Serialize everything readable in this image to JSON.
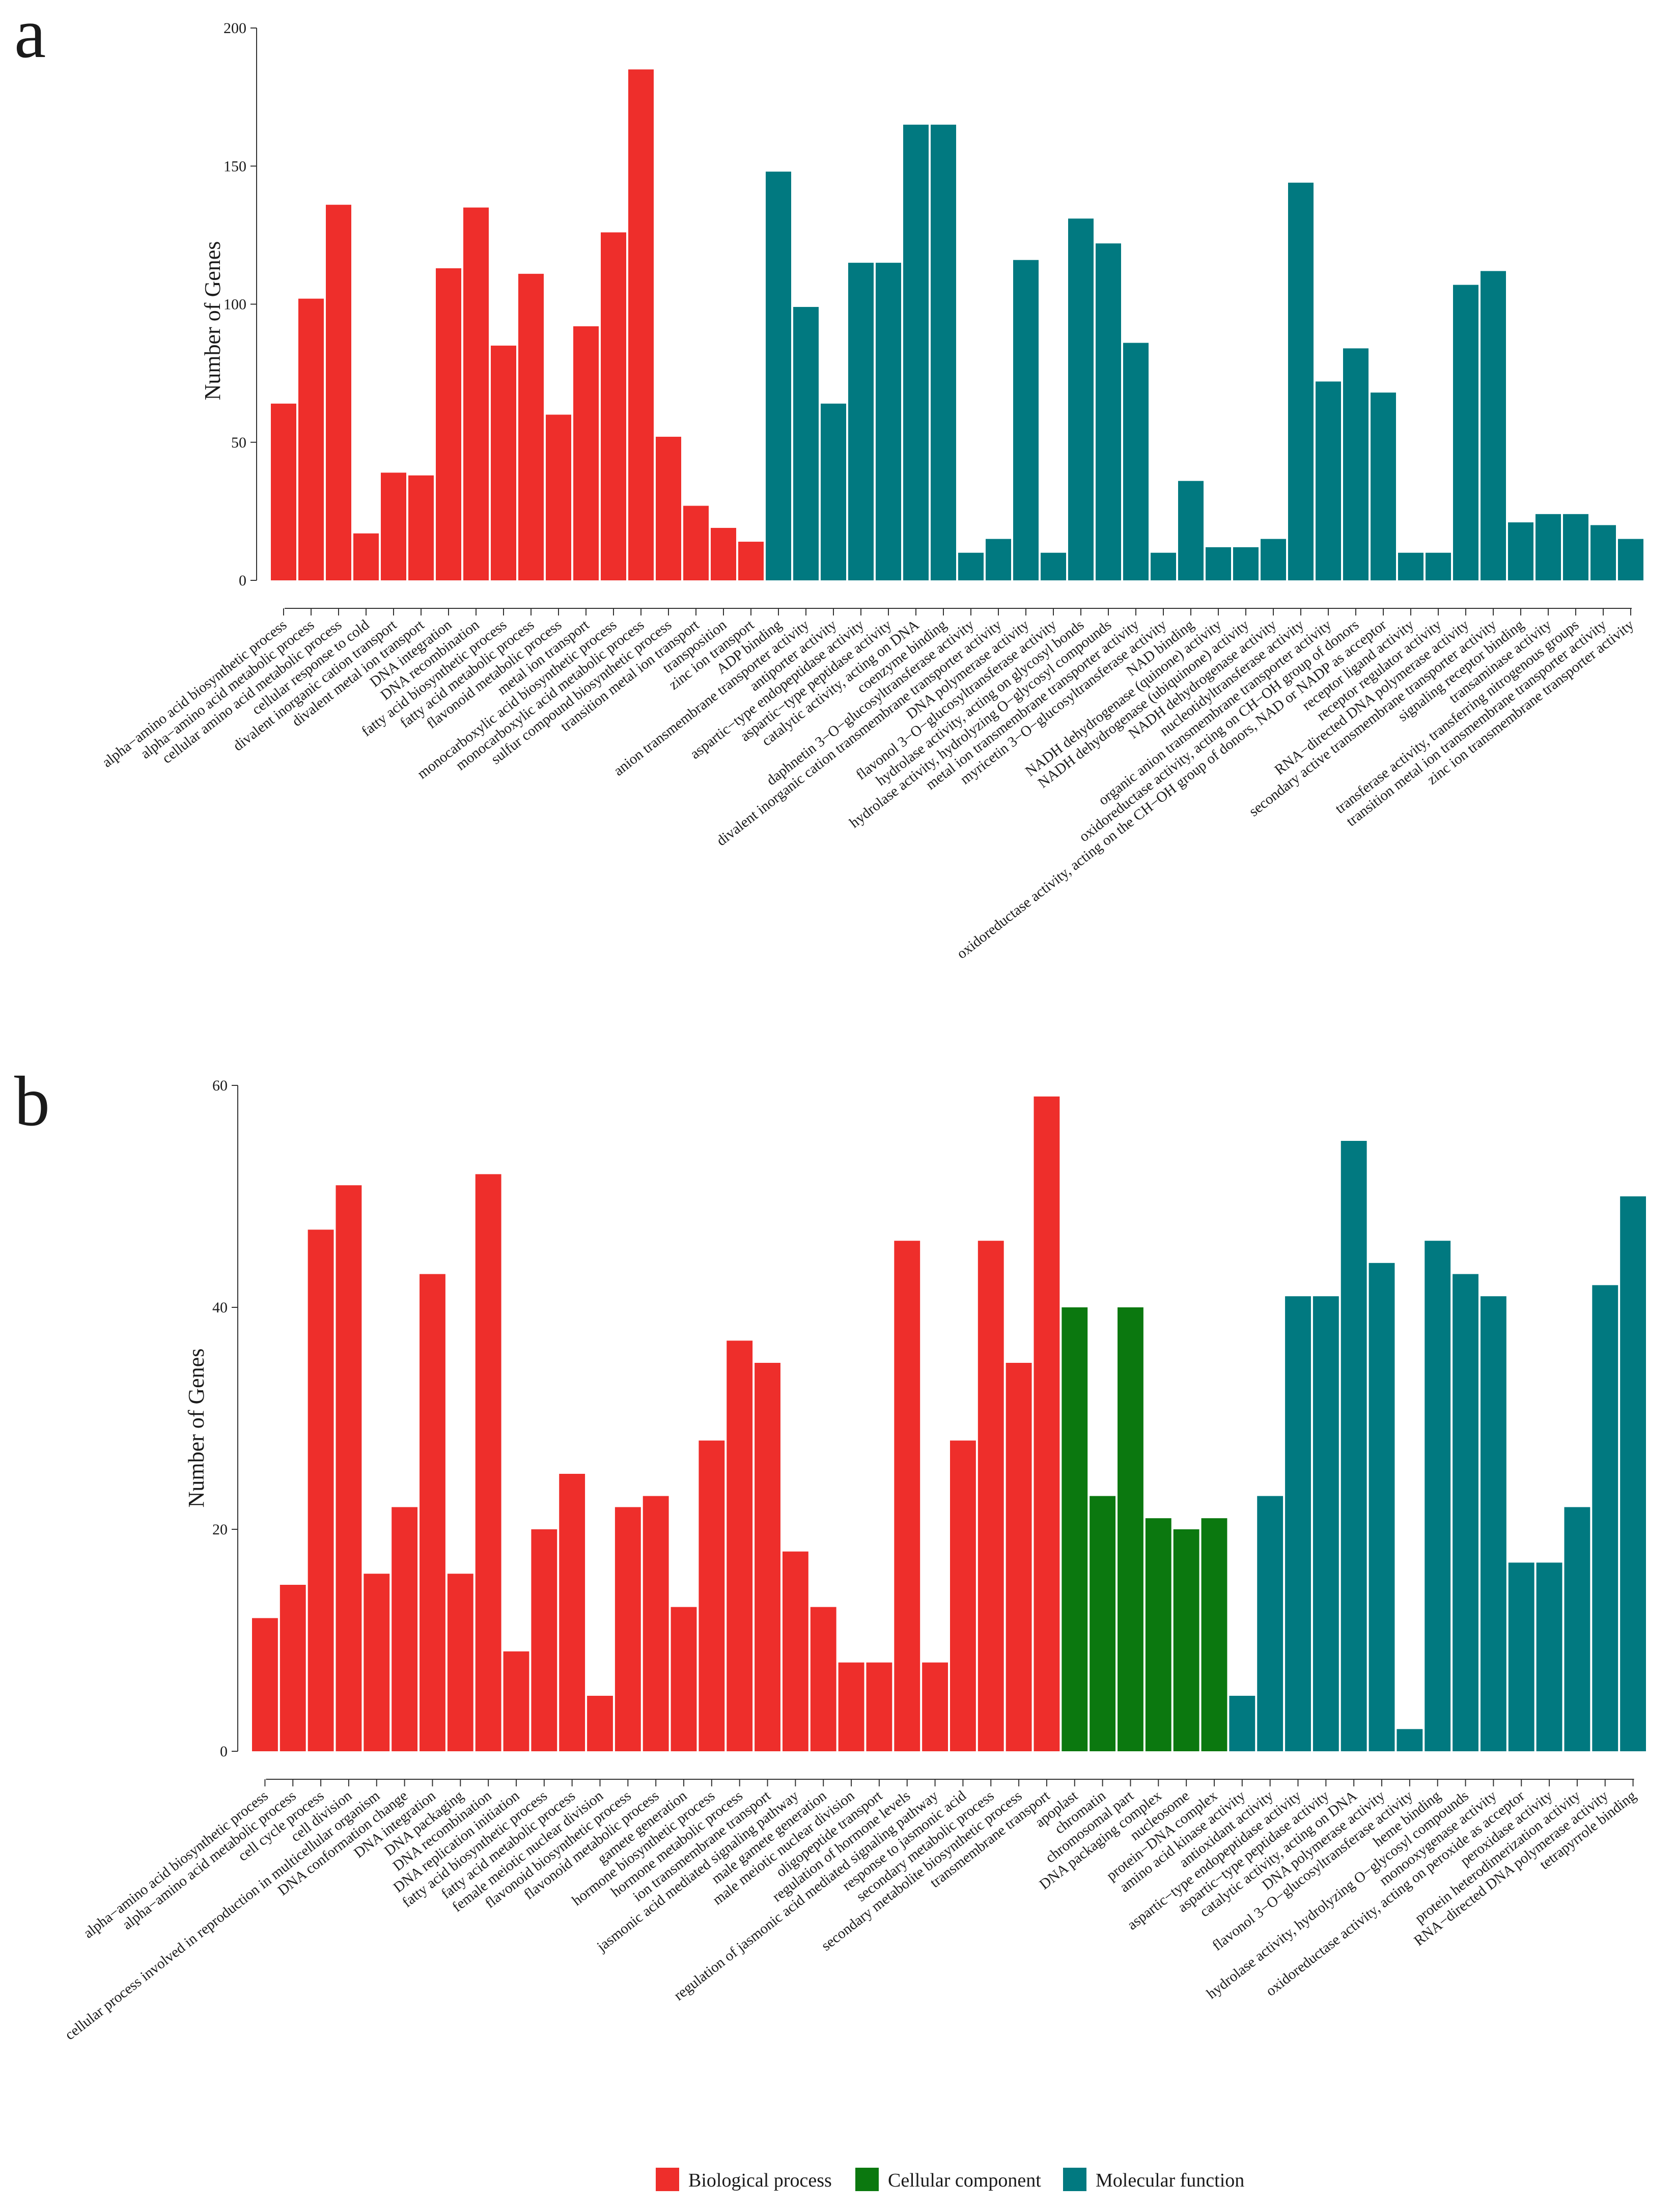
{
  "panels": [
    {
      "label": "a",
      "ylabel": "Number of Genes",
      "yticks": [
        0,
        50,
        100,
        150,
        200
      ],
      "ylim": [
        0,
        200
      ]
    },
    {
      "label": "b",
      "ylabel": "Number of Genes",
      "yticks": [
        0,
        20,
        40,
        60
      ],
      "ylim": [
        0,
        60
      ]
    }
  ],
  "legend": [
    {
      "label": "Biological process",
      "color": "#EE2E2B"
    },
    {
      "label": "Cellular component",
      "color": "#0B780F"
    },
    {
      "label": "Molecular function",
      "color": "#017980"
    }
  ],
  "chart_data": [
    {
      "type": "bar",
      "title": "a",
      "xlabel": "",
      "ylabel": "Number of Genes",
      "ylim": [
        0,
        200
      ],
      "categories": [
        "alpha−amino acid biosynthetic process",
        "alpha−amino acid metabolic process",
        "cellular amino acid metabolic process",
        "cellular response to cold",
        "divalent inorganic cation transport",
        "divalent metal ion transport",
        "DNA integration",
        "DNA recombination",
        "fatty acid biosynthetic process",
        "fatty acid metabolic process",
        "flavonoid metabolic process",
        "metal ion transport",
        "monocarboxylic acid biosynthetic process",
        "monocarboxylic acid metabolic process",
        "sulfur compound biosynthetic process",
        "transition metal ion transport",
        "transposition",
        "zinc ion transport",
        "ADP binding",
        "anion transmembrane transporter activity",
        "antiporter activity",
        "aspartic−type endopeptidase activity",
        "aspartic−type peptidase activity",
        "catalytic activity, acting on DNA",
        "coenzyme binding",
        "daphnetin 3−O−glucosyltransferase activity",
        "divalent inorganic cation transmembrane transporter activity",
        "DNA polymerase activity",
        "flavonol 3−O−glucosyltransferase activity",
        "hydrolase activity, acting on glycosyl bonds",
        "hydrolase activity, hydrolyzing O−glycosyl compounds",
        "metal ion transmembrane transporter activity",
        "myricetin 3−O−glucosyltransferase activity",
        "NAD binding",
        "NADH dehydrogenase (quinone) activity",
        "NADH dehydrogenase (ubiquinone) activity",
        "NADH dehydrogenase activity",
        "nucleotidyltransferase activity",
        "organic anion transmembrane transporter activity",
        "oxidoreductase activity, acting on CH−OH group of donors",
        "oxidoreductase activity, acting on the CH−OH group of donors, NAD or NADP as acceptor",
        "receptor ligand activity",
        "receptor regulator activity",
        "RNA−directed DNA polymerase activity",
        "secondary active transmembrane transporter activity",
        "signaling receptor binding",
        "transaminase activity",
        "transferase activity, transferring nitrogenous groups",
        "transition metal ion transmembrane transporter activity",
        "zinc ion transmembrane transporter activity"
      ],
      "values": [
        64,
        102,
        136,
        17,
        39,
        38,
        113,
        135,
        85,
        111,
        60,
        92,
        126,
        185,
        52,
        27,
        19,
        14,
        148,
        99,
        64,
        115,
        115,
        165,
        165,
        10,
        15,
        116,
        10,
        131,
        122,
        86,
        10,
        36,
        12,
        12,
        15,
        144,
        72,
        84,
        68,
        10,
        10,
        107,
        112,
        21,
        24,
        24,
        20,
        15
      ],
      "groups": [
        "Biological process",
        "Biological process",
        "Biological process",
        "Biological process",
        "Biological process",
        "Biological process",
        "Biological process",
        "Biological process",
        "Biological process",
        "Biological process",
        "Biological process",
        "Biological process",
        "Biological process",
        "Biological process",
        "Biological process",
        "Biological process",
        "Biological process",
        "Biological process",
        "Molecular function",
        "Molecular function",
        "Molecular function",
        "Molecular function",
        "Molecular function",
        "Molecular function",
        "Molecular function",
        "Molecular function",
        "Molecular function",
        "Molecular function",
        "Molecular function",
        "Molecular function",
        "Molecular function",
        "Molecular function",
        "Molecular function",
        "Molecular function",
        "Molecular function",
        "Molecular function",
        "Molecular function",
        "Molecular function",
        "Molecular function",
        "Molecular function",
        "Molecular function",
        "Molecular function",
        "Molecular function",
        "Molecular function",
        "Molecular function",
        "Molecular function",
        "Molecular function",
        "Molecular function",
        "Molecular function",
        "Molecular function"
      ]
    },
    {
      "type": "bar",
      "title": "b",
      "xlabel": "",
      "ylabel": "Number of Genes",
      "ylim": [
        0,
        60
      ],
      "categories": [
        "alpha−amino acid biosynthetic process",
        "alpha−amino acid metabolic process",
        "cell cycle process",
        "cell division",
        "cellular process involved in reproduction in multicellular organism",
        "DNA conformation change",
        "DNA integration",
        "DNA packaging",
        "DNA recombination",
        "DNA replication initiation",
        "fatty acid biosynthetic process",
        "fatty acid metabolic process",
        "female meiotic nuclear division",
        "flavonoid biosynthetic process",
        "flavonoid metabolic process",
        "gamete generation",
        "hormone biosynthetic process",
        "hormone metabolic process",
        "ion transmembrane transport",
        "jasmonic acid mediated signaling pathway",
        "male gamete generation",
        "male meiotic nuclear division",
        "oligopeptide transport",
        "regulation of hormone levels",
        "regulation of jasmonic acid mediated signaling pathway",
        "response to jasmonic acid",
        "secondary metabolic process",
        "secondary metabolite biosynthetic process",
        "transmembrane transport",
        "apoplast",
        "chromatin",
        "chromosomal part",
        "DNA packaging complex",
        "nucleosome",
        "protein−DNA complex",
        "amino acid kinase activity",
        "antioxidant activity",
        "aspartic−type endopeptidase activity",
        "aspartic−type peptidase activity",
        "catalytic activity, acting on DNA",
        "DNA polymerase activity",
        "flavonol 3−O−glucosyltransferase activity",
        "heme binding",
        "hydrolase activity, hydrolyzing O−glycosyl compounds",
        "monooxygenase activity",
        "oxidoreductase activity, acting on peroxide as acceptor",
        "peroxidase activity",
        "protein heterodimerization activity",
        "RNA−directed DNA polymerase activity",
        "tetrapyrrole binding"
      ],
      "values": [
        12,
        15,
        47,
        51,
        16,
        22,
        43,
        16,
        52,
        9,
        20,
        25,
        5,
        22,
        23,
        13,
        28,
        37,
        35,
        18,
        13,
        8,
        8,
        46,
        8,
        28,
        46,
        35,
        59,
        40,
        23,
        40,
        21,
        20,
        21,
        5,
        23,
        41,
        41,
        55,
        44,
        2,
        46,
        43,
        41,
        17,
        17,
        22,
        42,
        50
      ],
      "groups": [
        "Biological process",
        "Biological process",
        "Biological process",
        "Biological process",
        "Biological process",
        "Biological process",
        "Biological process",
        "Biological process",
        "Biological process",
        "Biological process",
        "Biological process",
        "Biological process",
        "Biological process",
        "Biological process",
        "Biological process",
        "Biological process",
        "Biological process",
        "Biological process",
        "Biological process",
        "Biological process",
        "Biological process",
        "Biological process",
        "Biological process",
        "Biological process",
        "Biological process",
        "Biological process",
        "Biological process",
        "Biological process",
        "Biological process",
        "Cellular component",
        "Cellular component",
        "Cellular component",
        "Cellular component",
        "Cellular component",
        "Cellular component",
        "Molecular function",
        "Molecular function",
        "Molecular function",
        "Molecular function",
        "Molecular function",
        "Molecular function",
        "Molecular function",
        "Molecular function",
        "Molecular function",
        "Molecular function",
        "Molecular function",
        "Molecular function",
        "Molecular function",
        "Molecular function",
        "Molecular function"
      ]
    }
  ]
}
